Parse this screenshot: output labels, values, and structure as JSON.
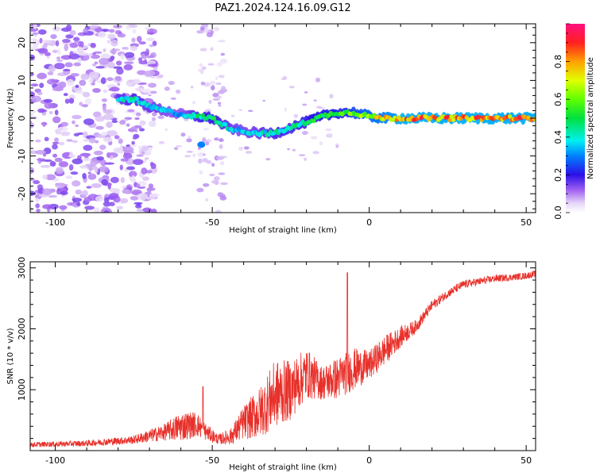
{
  "title": "PAZ1.2024.124.16.09.G12",
  "chart_data": [
    {
      "type": "heatmap",
      "xlabel": "Height of straight line (km)",
      "ylabel": "Frequency (Hz)",
      "xlim": [
        -108,
        53
      ],
      "ylim": [
        -25,
        25
      ],
      "x_ticks": [
        -100,
        -50,
        0,
        50
      ],
      "y_ticks": [
        -20,
        -10,
        0,
        10,
        20
      ],
      "colorbar": {
        "label": "Normalized spectral amplitude",
        "range": [
          0,
          1
        ],
        "ticks": [
          0.0,
          0.2,
          0.4,
          0.6,
          0.8
        ]
      },
      "ridge": {
        "x": [
          -80,
          -75,
          -70,
          -65,
          -60,
          -55,
          -50,
          -45,
          -40,
          -35,
          -30,
          -25,
          -20,
          -15,
          -10,
          -5,
          0,
          5,
          10,
          20,
          30,
          40,
          53
        ],
        "frequency": [
          5,
          5,
          3,
          2,
          1,
          0.5,
          0,
          -2.5,
          -3.5,
          -4,
          -4,
          -2.5,
          -1,
          0.5,
          1.5,
          1.5,
          0.5,
          0,
          0,
          0,
          0,
          0,
          0
        ],
        "amplitude": [
          0.45,
          0.5,
          0.45,
          0.4,
          0.35,
          0.5,
          0.55,
          0.45,
          0.4,
          0.45,
          0.5,
          0.5,
          0.55,
          0.6,
          0.6,
          0.7,
          0.8,
          0.85,
          0.95,
          0.95,
          0.95,
          0.95,
          0.95
        ]
      }
    },
    {
      "type": "line",
      "xlabel": "Height of straight line (km)",
      "ylabel": "SNR (10 * v/v)",
      "xlim": [
        -108,
        53
      ],
      "ylim": [
        0,
        3100
      ],
      "x_ticks": [
        -100,
        -50,
        0,
        50
      ],
      "y_ticks": [
        1000,
        2000,
        3000
      ],
      "color": "#e8302a",
      "envelope": {
        "x": [
          -108,
          -90,
          -75,
          -65,
          -60,
          -55,
          -52,
          -48,
          -44,
          -40,
          -35,
          -30,
          -25,
          -20,
          -15,
          -10,
          -5,
          0,
          5,
          10,
          15,
          20,
          25,
          30,
          35,
          40,
          45,
          50,
          53
        ],
        "base": [
          80,
          100,
          150,
          250,
          300,
          350,
          250,
          150,
          180,
          350,
          450,
          700,
          800,
          1100,
          1000,
          1050,
          1200,
          1300,
          1550,
          1800,
          2000,
          2350,
          2550,
          2700,
          2750,
          2800,
          2820,
          2850,
          2880
        ],
        "noise": [
          60,
          70,
          100,
          200,
          350,
          300,
          200,
          120,
          200,
          400,
          600,
          800,
          700,
          600,
          400,
          500,
          500,
          350,
          350,
          250,
          150,
          120,
          100,
          100,
          90,
          90,
          80,
          80,
          80
        ]
      },
      "spikes": [
        {
          "x": -7,
          "y": 2920
        },
        {
          "x": -53,
          "y": 1050
        }
      ]
    }
  ]
}
